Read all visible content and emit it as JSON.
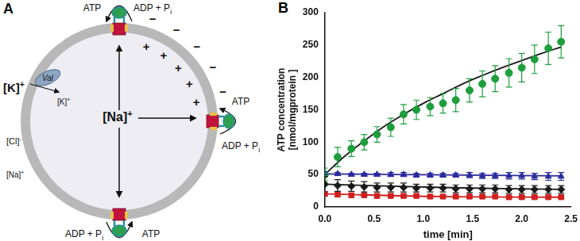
{
  "diagram": {
    "panel_label": "A",
    "pumps": [
      {
        "product": {
          "text": "ATP"
        },
        "substrate": {
          "text": "ADP + P",
          "sub": "i"
        }
      },
      {
        "product": {
          "text": "ATP"
        },
        "substrate": {
          "text": "ADP + P",
          "sub": "i"
        }
      },
      {
        "product": {
          "text": "ATP"
        },
        "substrate": {
          "text": "ADP + P",
          "sub": "i"
        }
      }
    ],
    "ionophore": "Val",
    "outside_cation": {
      "text": "[K]",
      "sup": "+"
    },
    "inside_cation": {
      "text": "[K]",
      "sup": "+"
    },
    "outside_anion": {
      "text": "[Cl]",
      "sup": "-"
    },
    "outside_sodium": {
      "text": "[Na]",
      "sup": "+"
    },
    "inside_sodium": {
      "text": "[Na]",
      "sup": "+"
    },
    "inside_charge": "+",
    "outside_charge": "−"
  },
  "chart_data": {
    "type": "scatter",
    "panel_label": "B",
    "x_label": "time [min]",
    "y_label": [
      "ATP concentration",
      "[nmol/mgprotein ]"
    ],
    "x": [
      0,
      0.13,
      0.27,
      0.4,
      0.53,
      0.67,
      0.8,
      0.93,
      1.07,
      1.2,
      1.33,
      1.47,
      1.6,
      1.73,
      1.87,
      2,
      2.13,
      2.27,
      2.4
    ],
    "series": [
      {
        "color": "#1e9e3c",
        "marker": "circle",
        "values": [
          50,
          77,
          90,
          100,
          112,
          123,
          143,
          150,
          155,
          160,
          165,
          180,
          190,
          198,
          207,
          215,
          228,
          245,
          255
        ],
        "errors": [
          10,
          15,
          12,
          12,
          12,
          14,
          15,
          15,
          14,
          15,
          18,
          18,
          20,
          20,
          22,
          22,
          22,
          25,
          25
        ]
      },
      {
        "color": "#2a2a9e",
        "marker": "triangle",
        "values": [
          52,
          51,
          50,
          50,
          50,
          50,
          50,
          49,
          49,
          49,
          49,
          49,
          48,
          48,
          48,
          48,
          47,
          47,
          47
        ],
        "errors": [
          2,
          2,
          2,
          2,
          2,
          3,
          3,
          3,
          3,
          3,
          3,
          4,
          4,
          4,
          5,
          5,
          5,
          6,
          6
        ]
      },
      {
        "color": "#1a1a1a",
        "marker": "diamond",
        "values": [
          35,
          33,
          32,
          31,
          30,
          30,
          30,
          29,
          29,
          29,
          28,
          28,
          28,
          28,
          27,
          27,
          27,
          27,
          27
        ],
        "errors": [
          12,
          9,
          8,
          8,
          7,
          7,
          7,
          6,
          6,
          6,
          6,
          6,
          6,
          6,
          6,
          6,
          6,
          6,
          6
        ]
      },
      {
        "color": "#d02020",
        "marker": "square",
        "values": [
          20,
          19,
          18,
          18,
          17,
          17,
          17,
          17,
          16,
          16,
          16,
          16,
          16,
          16,
          15,
          15,
          15,
          15,
          15
        ],
        "errors": [
          3,
          3,
          3,
          2,
          2,
          2,
          2,
          2,
          2,
          2,
          2,
          2,
          2,
          2,
          2,
          2,
          2,
          2,
          2
        ]
      },
      {
        "type": "line",
        "color": "#1a1a1a",
        "marker": "none",
        "line_style": "solid",
        "x": [
          0,
          0.2,
          0.4,
          0.6,
          0.8,
          1,
          1.2,
          1.4,
          1.6,
          1.8,
          2,
          2.2,
          2.4
        ],
        "values": [
          50,
          78,
          102,
          124,
          143,
          160,
          175,
          190,
          203,
          215,
          226,
          237,
          247
        ]
      },
      {
        "type": "line",
        "color": "#2a2a9e",
        "marker": "none",
        "line_style": "solid",
        "x": [
          0,
          2.4
        ],
        "values": [
          51,
          48
        ]
      },
      {
        "type": "line",
        "color": "#1a1a1a",
        "marker": "none",
        "line_style": "solid",
        "x": [
          0,
          1.2,
          2.4
        ],
        "values": [
          35,
          30,
          27
        ]
      },
      {
        "type": "line",
        "color": "#d02020",
        "marker": "none",
        "line_style": "solid",
        "x": [
          0,
          1.2,
          2.4
        ],
        "values": [
          20,
          16,
          15
        ]
      }
    ],
    "xlim": [
      0,
      2.5
    ],
    "xticks": [
      {
        "value": 0,
        "label": "0.0"
      },
      0.5,
      {
        "value": 1,
        "label": "1.0"
      },
      1.5,
      {
        "value": 2,
        "label": "2.0"
      },
      2.5
    ],
    "ylim": [
      0,
      300
    ],
    "yticks": [
      0,
      50,
      100,
      150,
      200,
      250,
      300
    ],
    "grid": false
  }
}
